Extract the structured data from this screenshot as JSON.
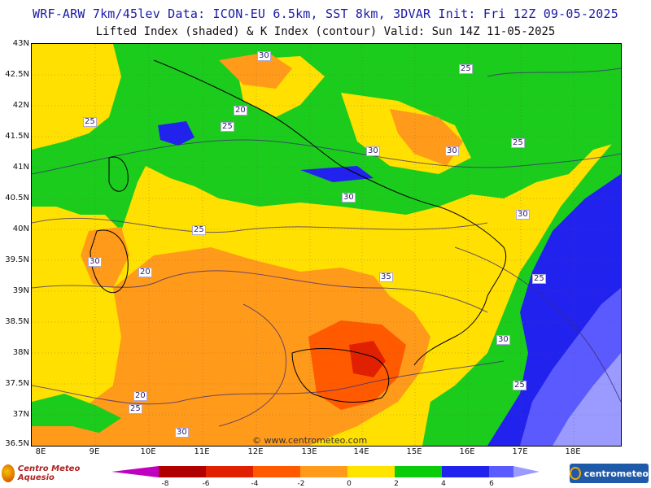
{
  "header": {
    "title_line1": "WRF-ARW 7km/45lev  Data: ICON-EU 6.5km, SST 8km, 3DVAR  Init: Fri 12Z 09-05-2025",
    "title_line2": "Lifted Index (shaded) & K Index (contour)  Valid: Sun 14Z 11-05-2025"
  },
  "axes": {
    "lat_labels": [
      "43N",
      "42.5N",
      "42N",
      "41.5N",
      "41N",
      "40.5N",
      "40N",
      "39.5N",
      "39N",
      "38.5N",
      "38N",
      "37.5N",
      "37N",
      "36.5N"
    ],
    "lon_labels": [
      "8E",
      "9E",
      "10E",
      "11E",
      "12E",
      "13E",
      "14E",
      "15E",
      "16E",
      "17E",
      "18E"
    ]
  },
  "contour_labels": [
    "30",
    "25",
    "20",
    "25",
    "25",
    "30",
    "30",
    "25",
    "30",
    "30",
    "25",
    "30",
    "20",
    "35",
    "25",
    "30",
    "25",
    "20",
    "25",
    "30"
  ],
  "watermark": "© www.centrometeo.com",
  "logos": {
    "left": "Centro Meteo Aquesio",
    "right": "centrometeo"
  },
  "colorbar": {
    "ticks": [
      "-8",
      "-6",
      "-4",
      "-2",
      "0",
      "2",
      "4",
      "6"
    ],
    "colors": [
      "#c000c0",
      "#b00000",
      "#e02000",
      "#ff5a00",
      "#ff9a1a",
      "#ffe400",
      "#0acc0a",
      "#2222ee",
      "#5a5aff",
      "#9a9aff"
    ]
  },
  "map_colors": {
    "sea_yellow": "#ffe000",
    "orange": "#ff9a1a",
    "dark_orange": "#ff5a00",
    "red": "#e02000",
    "green": "#1ccc1c",
    "blue": "#2222ee",
    "light_blue": "#5a5aff",
    "lilac": "#9a9aff"
  }
}
